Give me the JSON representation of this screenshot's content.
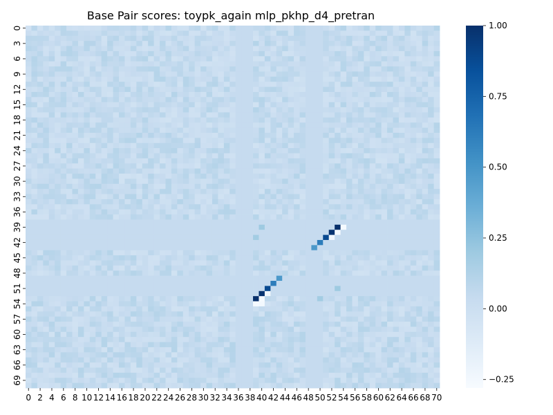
{
  "chart_data": {
    "type": "heatmap",
    "title": "Base Pair scores: toypk_again mlp_pkhp_d4_pretran",
    "xlabel": "",
    "ylabel": "",
    "n_rows": 71,
    "n_cols": 71,
    "x_tick_labels": [
      "0",
      "2",
      "4",
      "6",
      "8",
      "10",
      "12",
      "14",
      "16",
      "18",
      "20",
      "22",
      "24",
      "26",
      "28",
      "30",
      "32",
      "34",
      "36",
      "38",
      "40",
      "42",
      "44",
      "46",
      "48",
      "50",
      "52",
      "54",
      "56",
      "58",
      "60",
      "62",
      "64",
      "66",
      "68",
      "70"
    ],
    "y_tick_labels": [
      "0",
      "3",
      "6",
      "9",
      "12",
      "15",
      "18",
      "21",
      "24",
      "27",
      "30",
      "33",
      "36",
      "39",
      "42",
      "45",
      "48",
      "51",
      "54",
      "57",
      "60",
      "63",
      "66",
      "69"
    ],
    "colorbar": {
      "vmin": -0.28,
      "vmax": 1.0,
      "ticks": [
        -0.25,
        0.0,
        0.25,
        0.5,
        0.75,
        1.0
      ],
      "tick_labels": [
        "−0.25",
        "0.00",
        "0.25",
        "0.50",
        "0.75",
        "1.00"
      ],
      "colormap": "Blues",
      "colors": [
        "#f7fbff",
        "#deebf7",
        "#c6dbef",
        "#9ecae1",
        "#6baed6",
        "#4292c6",
        "#2171b5",
        "#08519c",
        "#08306b"
      ]
    },
    "background_value": 0.04,
    "blank_rows": [
      38,
      39,
      40,
      41,
      42,
      43,
      49,
      50,
      51,
      52
    ],
    "blank_cols": [
      36,
      37,
      38,
      48,
      49,
      50
    ],
    "noise_amplitude": 0.07,
    "highlighted_cells": [
      {
        "row": 39,
        "col": 53,
        "value": 1.0
      },
      {
        "row": 40,
        "col": 52,
        "value": 0.98
      },
      {
        "row": 41,
        "col": 51,
        "value": 0.88
      },
      {
        "row": 42,
        "col": 50,
        "value": 0.62
      },
      {
        "row": 43,
        "col": 49,
        "value": 0.48
      },
      {
        "row": 49,
        "col": 43,
        "value": 0.48
      },
      {
        "row": 50,
        "col": 42,
        "value": 0.62
      },
      {
        "row": 51,
        "col": 41,
        "value": 0.88
      },
      {
        "row": 52,
        "col": 40,
        "value": 0.98
      },
      {
        "row": 53,
        "col": 39,
        "value": 1.0
      },
      {
        "row": 39,
        "col": 40,
        "value": 0.2
      },
      {
        "row": 41,
        "col": 39,
        "value": 0.18
      },
      {
        "row": 51,
        "col": 53,
        "value": 0.2
      },
      {
        "row": 53,
        "col": 50,
        "value": 0.18
      },
      {
        "row": 39,
        "col": 54,
        "value": -0.27
      },
      {
        "row": 40,
        "col": 53,
        "value": -0.27
      },
      {
        "row": 41,
        "col": 52,
        "value": -0.25
      },
      {
        "row": 52,
        "col": 41,
        "value": -0.25
      },
      {
        "row": 53,
        "col": 40,
        "value": -0.27
      },
      {
        "row": 54,
        "col": 39,
        "value": -0.27
      },
      {
        "row": 54,
        "col": 40,
        "value": -0.25
      }
    ]
  }
}
